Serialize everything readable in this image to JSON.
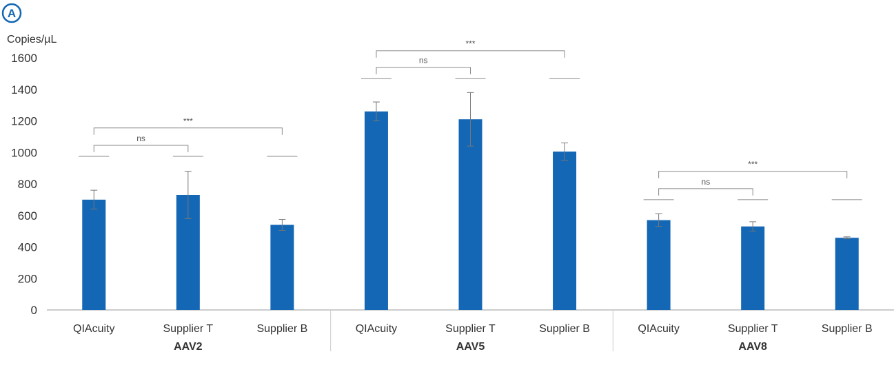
{
  "panel_label": "A",
  "colors": {
    "bar": "#1367b4",
    "badge": "#1367b4",
    "axis": "#999999",
    "bracket": "#888888",
    "text": "#333333"
  },
  "chart_data": {
    "type": "bar",
    "ylabel": "Copies/µL",
    "ylim": [
      0,
      1600
    ],
    "yticks": [
      0,
      200,
      400,
      600,
      800,
      1000,
      1200,
      1400,
      1600
    ],
    "grid": false,
    "groups": [
      {
        "name": "AAV2",
        "categories": [
          "QIAcuity",
          "Supplier T",
          "Supplier B"
        ],
        "values": [
          700,
          730,
          540
        ],
        "errors": [
          60,
          150,
          35
        ],
        "reference_level": 975,
        "comparisons": [
          {
            "from": 0,
            "to": 1,
            "label": "ns",
            "level": 1045
          },
          {
            "from": 0,
            "to": 2,
            "label": "***",
            "level": 1155
          }
        ]
      },
      {
        "name": "AAV5",
        "categories": [
          "QIAcuity",
          "Supplier T",
          "Supplier B"
        ],
        "values": [
          1260,
          1210,
          1005
        ],
        "errors": [
          60,
          170,
          55
        ],
        "reference_level": 1470,
        "comparisons": [
          {
            "from": 0,
            "to": 1,
            "label": "ns",
            "level": 1540
          },
          {
            "from": 0,
            "to": 2,
            "label": "***",
            "level": 1645
          }
        ]
      },
      {
        "name": "AAV8",
        "categories": [
          "QIAcuity",
          "Supplier T",
          "Supplier B"
        ],
        "values": [
          570,
          530,
          458
        ],
        "errors": [
          40,
          30,
          6
        ],
        "reference_level": 700,
        "comparisons": [
          {
            "from": 0,
            "to": 1,
            "label": "ns",
            "level": 770
          },
          {
            "from": 0,
            "to": 2,
            "label": "***",
            "level": 880
          }
        ]
      }
    ]
  }
}
